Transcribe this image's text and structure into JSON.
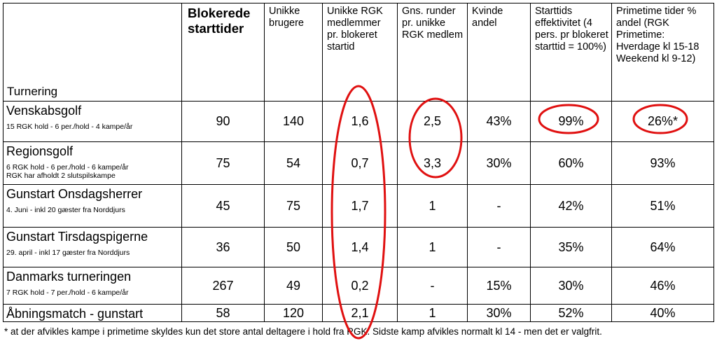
{
  "headers": [
    {
      "text": "Turnering"
    },
    {
      "text": "Blokerede starttider"
    },
    {
      "text": "Unikke brugere"
    },
    {
      "text": "Unikke RGK medlemmer pr. blokeret startid"
    },
    {
      "text": "Gns. runder pr. unikke RGK medlem"
    },
    {
      "text": "Kvinde andel"
    },
    {
      "text": "Starttids effektivitet (4 pers. pr blokeret starttid = 100%)"
    },
    {
      "text": "Primetime tider % andel (RGK Primetime: Hverdage kl 15-18 Weekend kl 9-12)"
    }
  ],
  "rows": [
    {
      "name": "Venskabsgolf",
      "notes": [
        "15 RGK hold - 6 per./hold - 4 kampe/år"
      ],
      "values": [
        "90",
        "140",
        "1,6",
        "2,5",
        "43%",
        "99%",
        "26%*"
      ]
    },
    {
      "name": "Regionsgolf",
      "notes": [
        "6 RGK hold - 6 per./hold - 6 kampe/år",
        "RGK har afholdt 2 slutspilskampe"
      ],
      "values": [
        "75",
        "54",
        "0,7",
        "3,3",
        "30%",
        "60%",
        "93%"
      ]
    },
    {
      "name": "Gunstart Onsdagsherrer",
      "notes": [
        "4. Juni - inkl 20 gæster fra Norddjurs"
      ],
      "values": [
        "45",
        "75",
        "1,7",
        "1",
        "-",
        "42%",
        "51%"
      ]
    },
    {
      "name": "Gunstart Tirsdagspigerne",
      "notes": [
        "29. april - inkl 17 gæster fra Norddjurs"
      ],
      "values": [
        "36",
        "50",
        "1,4",
        "1",
        "-",
        "35%",
        "64%"
      ]
    },
    {
      "name": "Danmarks turneringen",
      "notes": [
        "7 RGK hold - 7 per./hold - 6 kampe/år"
      ],
      "values": [
        "267",
        "49",
        "0,2",
        "-",
        "15%",
        "30%",
        "46%"
      ]
    },
    {
      "name": "Åbningsmatch - gunstart",
      "notes": [],
      "values": [
        "58",
        "120",
        "2,1",
        "1",
        "30%",
        "52%",
        "40%"
      ]
    }
  ],
  "footnote": "* at der afvikles kampe i primetime skyldes kun det store antal deltagere i hold fra RGK. Sidste kamp afvikles normalt kl 14 - men det er valgfrit.",
  "annotation_color": "#e01010"
}
